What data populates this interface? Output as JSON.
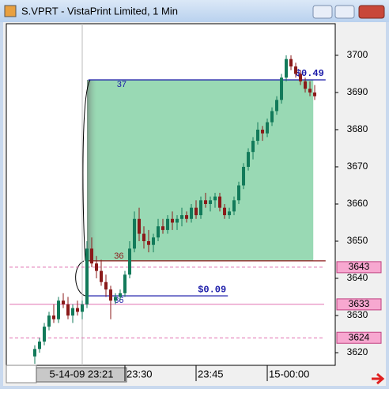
{
  "window": {
    "title": "S.VPRT - VistaPrint Limited, 1 Min"
  },
  "chart_data": {
    "type": "candlestick",
    "x": [
      11,
      12,
      13,
      14,
      15,
      16,
      17,
      18,
      19,
      20,
      21,
      22,
      23,
      24,
      25,
      26,
      27,
      28,
      29,
      30,
      31,
      32,
      33,
      34,
      35,
      36,
      37,
      38,
      39,
      40,
      41,
      42,
      43,
      44,
      45,
      46,
      47,
      48,
      49,
      50,
      51,
      52,
      53,
      54,
      55,
      56,
      57,
      58,
      59,
      60,
      61,
      62,
      63,
      64,
      65,
      66,
      67,
      68,
      69,
      70
    ],
    "open": [
      3619,
      3621,
      3623,
      3627,
      3630,
      3629,
      3634,
      3633,
      3630,
      3632,
      3631,
      3633,
      3648,
      3644,
      3642,
      3639,
      3637,
      3634,
      3635,
      3636,
      3641,
      3648,
      3656,
      3652,
      3650,
      3649,
      3651,
      3654,
      3653,
      3656,
      3655,
      3656,
      3657,
      3656,
      3659,
      3657,
      3661,
      3660,
      3661,
      3662,
      3659,
      3657,
      3658,
      3661,
      3665,
      3670,
      3674,
      3677,
      3680,
      3679,
      3682,
      3685,
      3688,
      3694,
      3699,
      3697,
      3695,
      3693,
      3691,
      3690
    ],
    "high": [
      3622,
      3624,
      3628,
      3631,
      3633,
      3635,
      3636,
      3635,
      3633,
      3634,
      3634,
      3650,
      3651,
      3646,
      3645,
      3641,
      3638,
      3636,
      3637,
      3642,
      3650,
      3658,
      3659,
      3654,
      3653,
      3652,
      3656,
      3656,
      3657,
      3658,
      3657,
      3659,
      3658,
      3660,
      3661,
      3662,
      3663,
      3662,
      3663,
      3663,
      3660,
      3659,
      3662,
      3666,
      3671,
      3675,
      3678,
      3682,
      3681,
      3683,
      3686,
      3689,
      3695,
      3700,
      3700,
      3698,
      3696,
      3694,
      3693,
      3692
    ],
    "low": [
      3617,
      3620,
      3622,
      3626,
      3628,
      3628,
      3632,
      3629,
      3628,
      3630,
      3629,
      3632,
      3643,
      3640,
      3638,
      3635,
      3629,
      3633,
      3634,
      3635,
      3640,
      3647,
      3650,
      3648,
      3647,
      3647,
      3650,
      3652,
      3652,
      3653,
      3653,
      3654,
      3655,
      3655,
      3656,
      3656,
      3659,
      3658,
      3659,
      3658,
      3656,
      3656,
      3657,
      3660,
      3664,
      3669,
      3672,
      3676,
      3677,
      3678,
      3681,
      3684,
      3687,
      3693,
      3696,
      3694,
      3692,
      3690,
      3689,
      3688
    ],
    "close": [
      3621,
      3623,
      3627,
      3630,
      3629,
      3634,
      3633,
      3630,
      3632,
      3631,
      3633,
      3648,
      3644,
      3642,
      3639,
      3637,
      3634,
      3635,
      3636,
      3641,
      3648,
      3656,
      3652,
      3650,
      3649,
      3651,
      3654,
      3653,
      3656,
      3655,
      3656,
      3657,
      3656,
      3659,
      3657,
      3661,
      3660,
      3661,
      3662,
      3659,
      3657,
      3658,
      3661,
      3665,
      3670,
      3674,
      3677,
      3680,
      3679,
      3682,
      3685,
      3688,
      3694,
      3699,
      3697,
      3695,
      3693,
      3691,
      3690,
      3689
    ],
    "up_color": "#127a5a",
    "down_color": "#8b1a1a",
    "xlim": [
      5,
      74.33
    ],
    "ylim": [
      3616.6,
      3708.5
    ],
    "xticks": [
      {
        "value": 30,
        "label": "23:30"
      },
      {
        "value": 45,
        "label": "23:45"
      },
      {
        "value": 60,
        "label": "15-00:00"
      }
    ],
    "yticks": [
      3620,
      3630,
      3640,
      3650,
      3660,
      3670,
      3680,
      3690,
      3700
    ],
    "cursor": {
      "value": 21,
      "label": "5-14-09 23:21"
    },
    "zone": {
      "top": 3693.4,
      "bottom": 3644.7,
      "from": 22,
      "to": 69.7,
      "color": "#99d9b4"
    },
    "hlines": [
      {
        "value": 3643,
        "label": "3643",
        "color": "#e070b0",
        "dashed": true
      },
      {
        "value": 3633,
        "label": "3633",
        "color": "#e070b0",
        "dashed": false
      },
      {
        "value": 3624,
        "label": "3624",
        "color": "#e070b0",
        "dashed": true
      }
    ],
    "segments": [
      {
        "value": 3693.4,
        "from": 22.3,
        "to": 72.3,
        "color": "#1a1aa8",
        "label": "37",
        "price_label": "$0.49"
      },
      {
        "value": 3644.7,
        "from": 21.7,
        "to": 72.3,
        "color": "#8b1a1a",
        "label": "36"
      },
      {
        "value": 3635.3,
        "from": 21.7,
        "to": 51.7,
        "color": "#1a1aa8",
        "label": "36",
        "price_label": "$0.09"
      }
    ]
  }
}
